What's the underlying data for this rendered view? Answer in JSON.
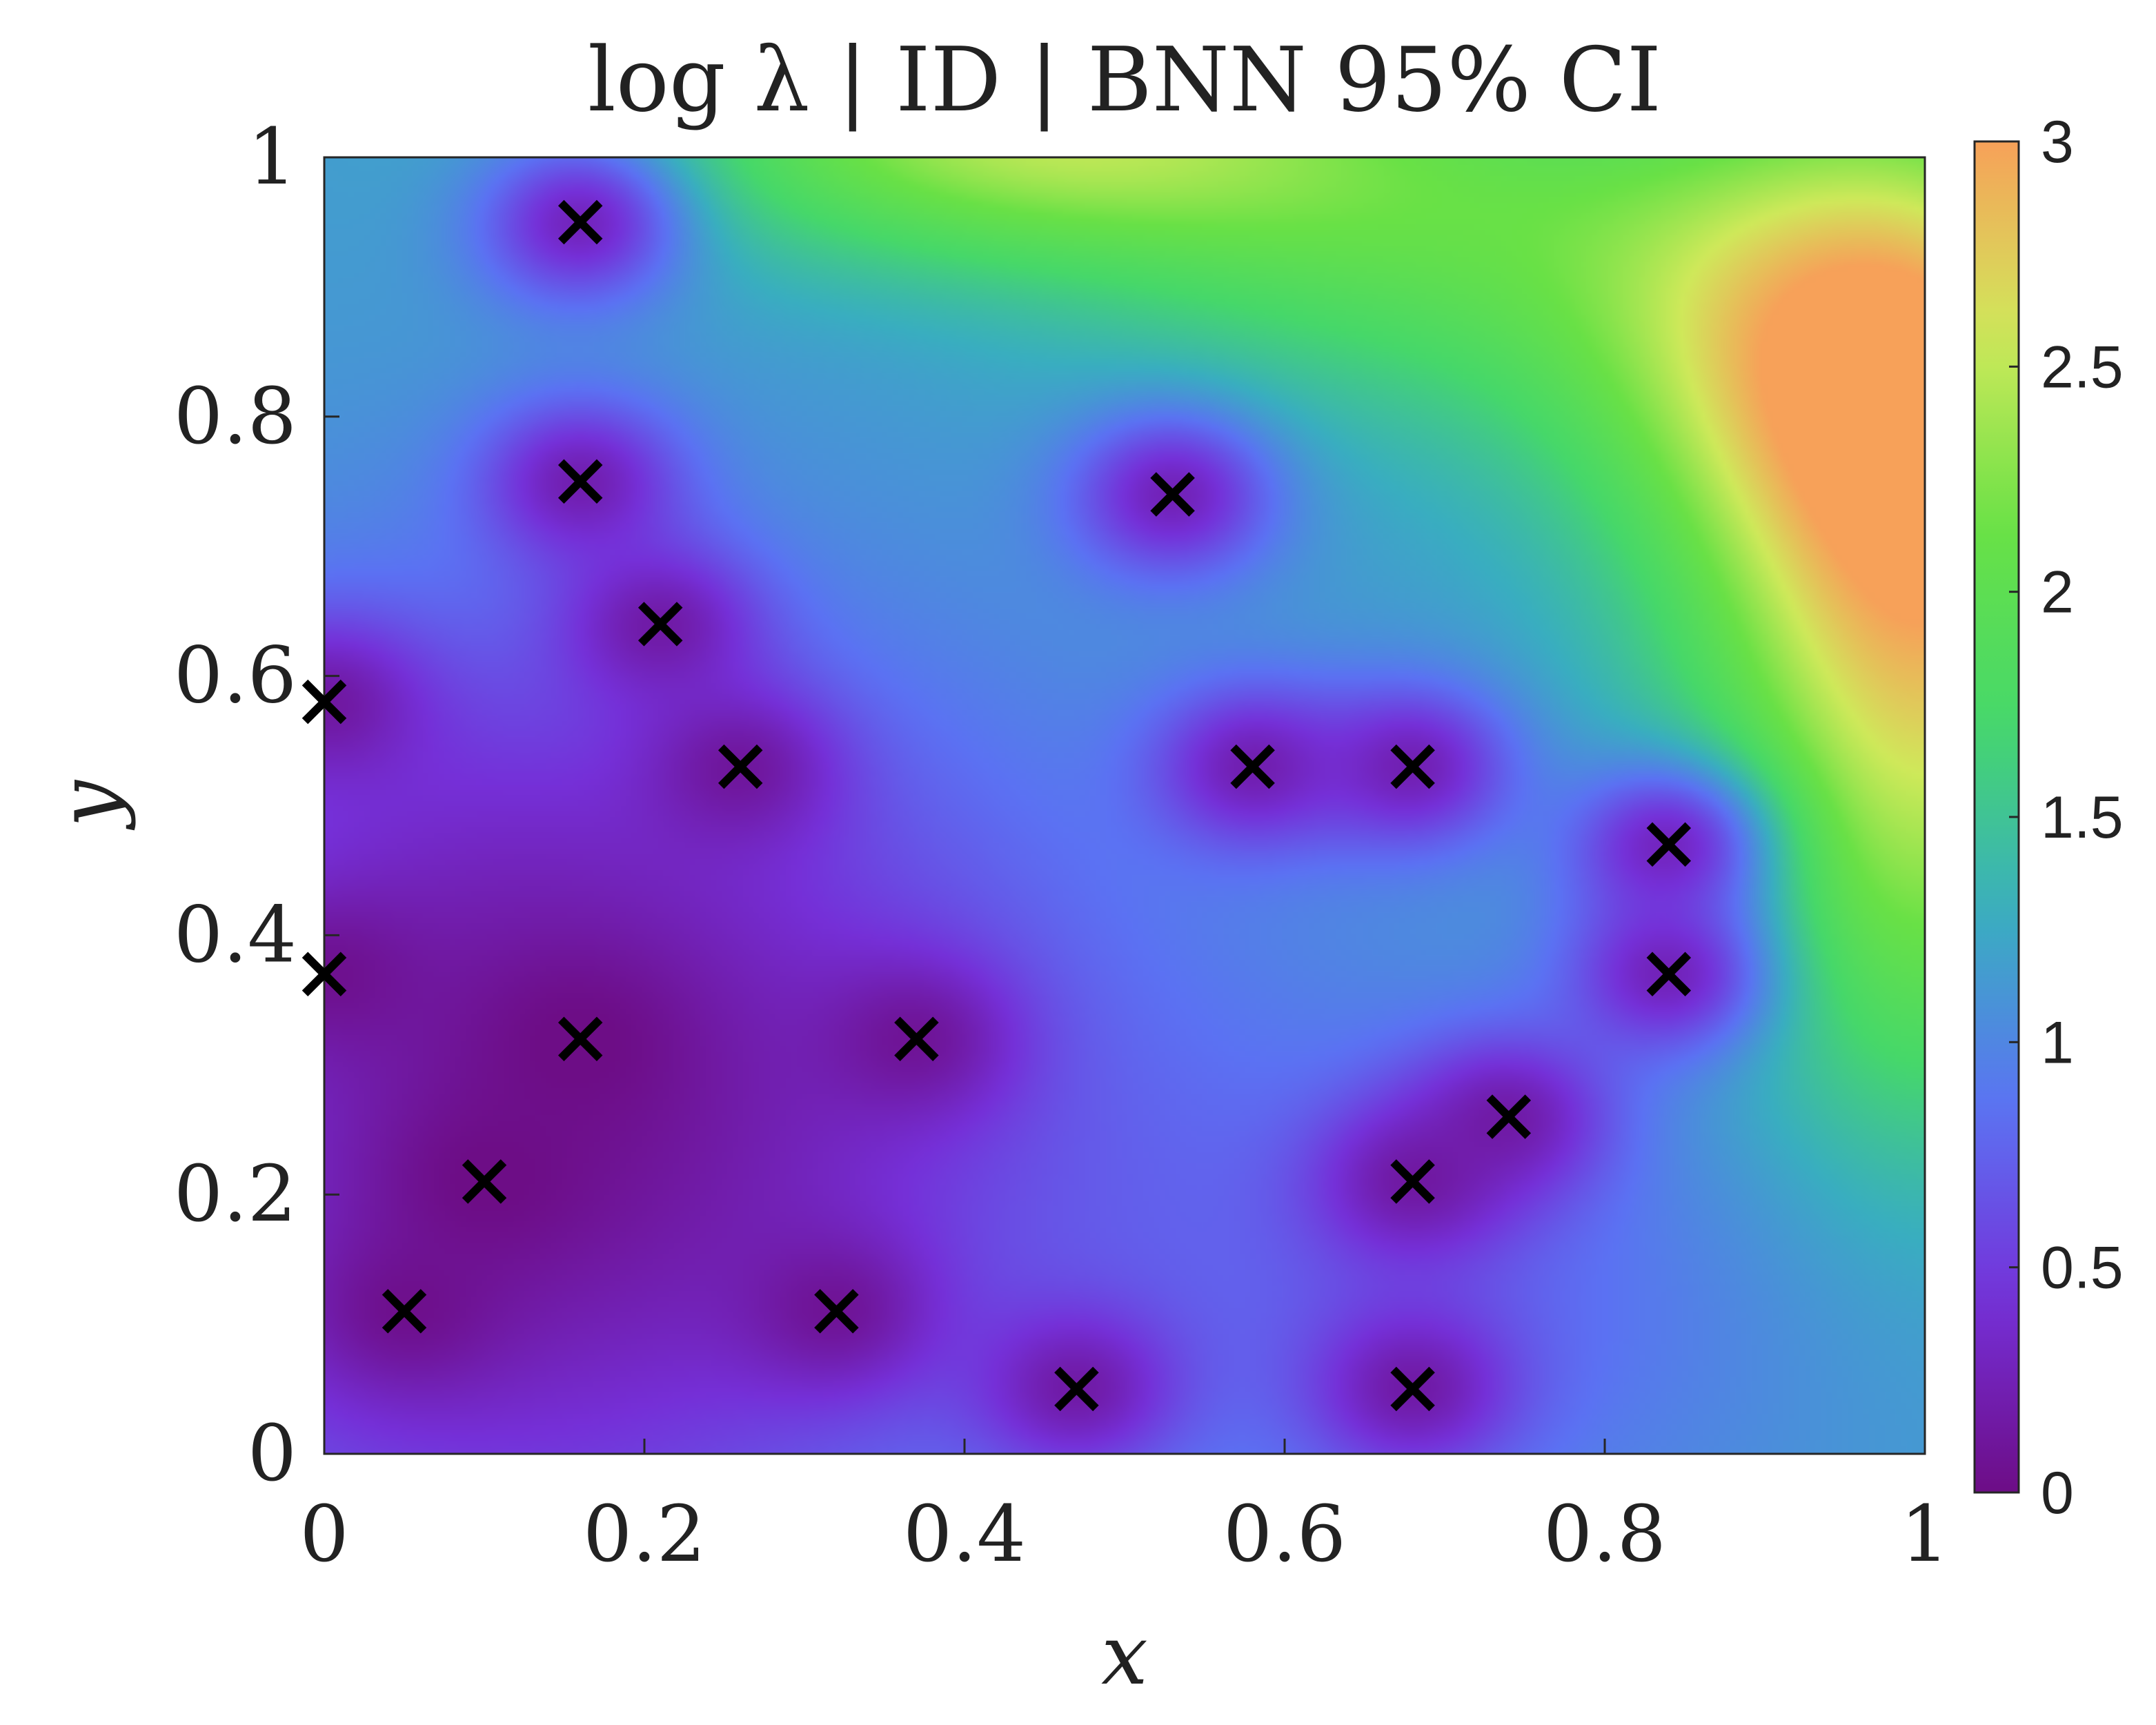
{
  "chart_data": {
    "type": "heatmap",
    "title": "log λ | ID | BNN 95% CI",
    "xlabel": "x",
    "ylabel": "y",
    "xlim": [
      0,
      1
    ],
    "ylim": [
      0,
      1
    ],
    "x_ticks": [
      0,
      0.2,
      0.4,
      0.6,
      0.8,
      1
    ],
    "x_tick_labels": [
      "0",
      "0.2",
      "0.4",
      "0.6",
      "0.8",
      "1"
    ],
    "y_ticks": [
      0,
      0.2,
      0.4,
      0.6,
      0.8,
      1
    ],
    "y_tick_labels": [
      "0",
      "0.2",
      "0.4",
      "0.6",
      "0.8",
      "1"
    ],
    "colorbar": {
      "range": [
        0,
        3
      ],
      "ticks": [
        0,
        0.5,
        1,
        1.5,
        2,
        2.5,
        3
      ],
      "tick_labels": [
        "0",
        "0.5",
        "1",
        "1.5",
        "2",
        "2.5",
        "3"
      ],
      "colors": [
        "#6d0d86",
        "#7530d8",
        "#5b72f3",
        "#39aec0",
        "#46d86a",
        "#69e146",
        "#cfe95a",
        "#f7a159"
      ]
    },
    "markers": {
      "symbol": "x",
      "color": "#000000",
      "points": [
        {
          "x": 0.16,
          "y": 0.95
        },
        {
          "x": 0.16,
          "y": 0.75
        },
        {
          "x": 0.21,
          "y": 0.64
        },
        {
          "x": 0.26,
          "y": 0.53
        },
        {
          "x": 0.0,
          "y": 0.58
        },
        {
          "x": 0.53,
          "y": 0.74
        },
        {
          "x": 0.58,
          "y": 0.53
        },
        {
          "x": 0.68,
          "y": 0.53
        },
        {
          "x": 0.84,
          "y": 0.47
        },
        {
          "x": 0.84,
          "y": 0.37
        },
        {
          "x": 0.0,
          "y": 0.37
        },
        {
          "x": 0.16,
          "y": 0.32
        },
        {
          "x": 0.37,
          "y": 0.32
        },
        {
          "x": 0.74,
          "y": 0.26
        },
        {
          "x": 0.1,
          "y": 0.21
        },
        {
          "x": 0.68,
          "y": 0.21
        },
        {
          "x": 0.05,
          "y": 0.11
        },
        {
          "x": 0.32,
          "y": 0.11
        },
        {
          "x": 0.47,
          "y": 0.05
        },
        {
          "x": 0.68,
          "y": 0.05
        }
      ]
    },
    "field_background": 1.2,
    "field_hotspots": [
      {
        "x": 1.0,
        "y": 0.72,
        "amp": 1.7,
        "sx": 0.1,
        "sy": 0.2
      },
      {
        "x": 0.43,
        "y": 1.02,
        "amp": 1.2,
        "sx": 0.15,
        "sy": 0.07
      },
      {
        "x": 0.92,
        "y": 0.86,
        "amp": 0.9,
        "sx": 0.12,
        "sy": 0.12
      },
      {
        "x": 0.68,
        "y": 0.95,
        "amp": 0.7,
        "sx": 0.15,
        "sy": 0.1
      },
      {
        "x": 1.0,
        "y": 0.4,
        "amp": 0.5,
        "sx": 0.08,
        "sy": 0.15
      }
    ],
    "field_coldspots": [
      {
        "x": 0.1,
        "y": 0.15,
        "amp": 0.75,
        "sx": 0.22,
        "sy": 0.22
      },
      {
        "x": 0.25,
        "y": 0.35,
        "amp": 0.45,
        "sx": 0.2,
        "sy": 0.2
      },
      {
        "x": 0.7,
        "y": 0.12,
        "amp": 0.35,
        "sx": 0.15,
        "sy": 0.15
      },
      {
        "x": 0.05,
        "y": 0.5,
        "amp": 0.3,
        "sx": 0.15,
        "sy": 0.15
      }
    ]
  }
}
